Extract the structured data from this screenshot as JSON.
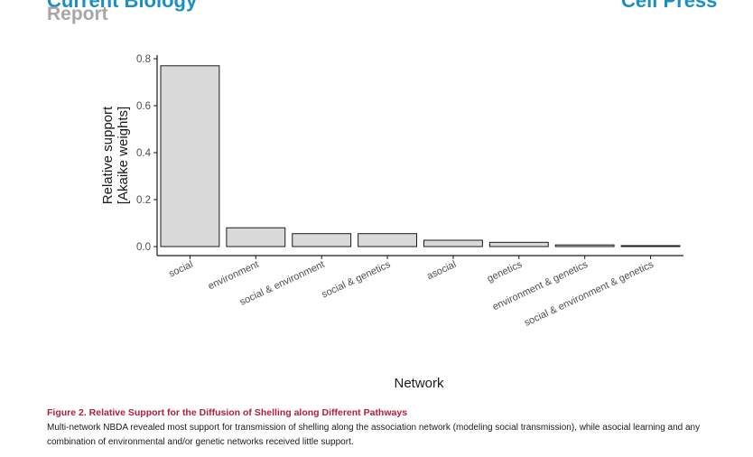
{
  "header": {
    "journal": "Current Biology",
    "article_type": "Report",
    "publisher": "Cell Press"
  },
  "chart_data": {
    "type": "bar",
    "categories": [
      "social",
      "environment",
      "social & environment",
      "social & genetics",
      "asocial",
      "genetics",
      "environment & genetics",
      "social & environment & genetics"
    ],
    "values": [
      0.77,
      0.08,
      0.055,
      0.055,
      0.027,
      0.018,
      0.007,
      0.004
    ],
    "xlabel": "Network",
    "ylabel_line1": "Relative support",
    "ylabel_line2": "[Akaike weights]",
    "ylim": [
      0,
      0.8
    ],
    "yticks": [
      "0.0",
      "0.2",
      "0.4",
      "0.6",
      "0.8"
    ],
    "grid": false,
    "bar_fill": "#d9d9d9",
    "bar_stroke": "#1a1a1a"
  },
  "caption": {
    "title": "Figure 2.  Relative Support for the Diffusion of Shelling along Different Pathways",
    "body": "Multi-network NBDA revealed most support for transmission of shelling along the association network (modeling social transmission), while asocial learning and any combination of environmental and/or genetic networks received little support."
  }
}
